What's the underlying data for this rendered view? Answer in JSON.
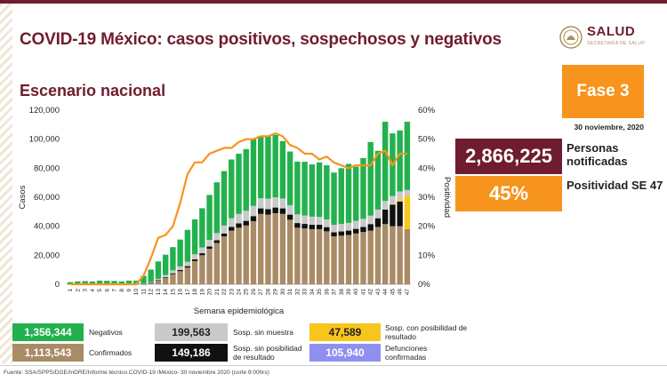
{
  "header": {
    "title": "COVID-19 México: casos positivos, sospechosos y negativos",
    "subtitle": "Escenario nacional",
    "logo_text": "SALUD",
    "logo_subtext": "SECRETARÍA DE SALUD"
  },
  "phase": {
    "label": "Fase 3",
    "date": "30 noviembre, 2020"
  },
  "stats": {
    "notified_value": "2,866,225",
    "notified_label": "Personas notificadas",
    "positivity_value": "45%",
    "positivity_label": "Positividad SE 47"
  },
  "legend": {
    "negatives": {
      "value": "1,356,344",
      "label": "Negativos",
      "color": "#23b14d"
    },
    "confirmed": {
      "value": "1,113,543",
      "label": "Confirmados",
      "color": "#a98b66"
    },
    "no_sample": {
      "value": "199,563",
      "label": "Sosp. sin muestra",
      "color": "#c9c9c9"
    },
    "no_result_possible": {
      "value": "149,186",
      "label": "Sosp. sin posibilidad de resultado",
      "color": "#111111"
    },
    "with_result_possible": {
      "value": "47,589",
      "label": "Sosp. con posibilidad de resultado",
      "color": "#f6c61c"
    },
    "deaths": {
      "value": "105,940",
      "label": "Defunciones confirmadas",
      "color": "#8f8ff0"
    }
  },
  "footer": "Fuente: SSA/SPPS/DGE/InDRE/Informe técnico.COVID-19 /México- 30 noviembre 2020 (corte 9:00hrs)",
  "chart_data": {
    "type": "bar",
    "stacked": true,
    "xlabel": "Semana epidemiológica",
    "ylabel": "Casos",
    "y2label": "Positividad",
    "ylim": [
      0,
      120000
    ],
    "y2lim": [
      0,
      60
    ],
    "yticks": [
      "0",
      "20,000",
      "40,000",
      "60,000",
      "80,000",
      "100,000",
      "120,000"
    ],
    "y2ticks": [
      "0%",
      "10%",
      "20%",
      "30%",
      "40%",
      "50%",
      "60%"
    ],
    "grid": false,
    "categories": [
      "1",
      "2",
      "3",
      "4",
      "5",
      "6",
      "7",
      "8",
      "9",
      "10",
      "11",
      "12",
      "13",
      "14",
      "15",
      "16",
      "17",
      "18",
      "19",
      "20",
      "21",
      "22",
      "23",
      "24",
      "25",
      "26",
      "27",
      "28",
      "29",
      "30",
      "31",
      "32",
      "33",
      "34",
      "35",
      "36",
      "37",
      "38",
      "39",
      "40",
      "41",
      "42",
      "43",
      "44",
      "45",
      "46",
      "47"
    ],
    "series": [
      {
        "name": "Confirmados",
        "color": "#a98b66",
        "values": [
          0,
          0,
          0,
          0,
          0,
          0,
          0,
          0,
          0,
          10,
          120,
          900,
          2500,
          4500,
          7000,
          9000,
          11500,
          16000,
          20000,
          24500,
          28500,
          33000,
          37000,
          39000,
          40500,
          43500,
          48500,
          48000,
          49000,
          48500,
          44500,
          39000,
          38500,
          38000,
          38000,
          36500,
          33000,
          33500,
          34000,
          35000,
          36000,
          37000,
          39500,
          41500,
          40000,
          40000,
          38000
        ]
      },
      {
        "name": "Sosp. sin posibilidad de resultado",
        "color": "#111111",
        "values": [
          0,
          0,
          0,
          0,
          0,
          0,
          0,
          0,
          0,
          0,
          20,
          100,
          250,
          400,
          600,
          800,
          1000,
          1200,
          1400,
          1600,
          1800,
          2000,
          2500,
          3000,
          3200,
          3500,
          3800,
          3800,
          3900,
          3800,
          3500,
          3200,
          3100,
          3000,
          3000,
          2900,
          2800,
          2900,
          3000,
          3200,
          3500,
          4500,
          6000,
          10000,
          15000,
          17000,
          0
        ]
      },
      {
        "name": "Sosp. con posibilidad de resultado",
        "color": "#f6c61c",
        "values": [
          0,
          0,
          0,
          0,
          0,
          0,
          0,
          0,
          0,
          0,
          0,
          0,
          0,
          0,
          0,
          0,
          0,
          0,
          0,
          0,
          0,
          0,
          0,
          0,
          0,
          0,
          0,
          0,
          0,
          0,
          0,
          0,
          0,
          0,
          0,
          0,
          0,
          0,
          0,
          0,
          0,
          0,
          0,
          0,
          100,
          1500,
          23000
        ]
      },
      {
        "name": "Sosp. sin muestra",
        "color": "#c9c9c9",
        "values": [
          0,
          0,
          0,
          0,
          0,
          0,
          0,
          0,
          0,
          20,
          150,
          500,
          1000,
          1500,
          2000,
          2500,
          3000,
          3500,
          4000,
          4500,
          5000,
          5500,
          6000,
          6500,
          7000,
          7000,
          7000,
          7200,
          7000,
          6800,
          6500,
          6000,
          5800,
          5600,
          5500,
          5300,
          5200,
          5200,
          5300,
          5500,
          5600,
          5800,
          6000,
          6000,
          5800,
          5500,
          4000
        ]
      },
      {
        "name": "Negativos",
        "color": "#23b14d",
        "values": [
          1500,
          2000,
          2200,
          1900,
          2500,
          2400,
          2300,
          2000,
          2500,
          2500,
          5500,
          8600,
          12000,
          14000,
          16000,
          18500,
          22000,
          24000,
          27000,
          31000,
          35000,
          37500,
          40500,
          41500,
          42500,
          46000,
          43000,
          43000,
          43000,
          39500,
          37000,
          36300,
          37000,
          36000,
          37500,
          37300,
          36000,
          38400,
          40700,
          37300,
          41900,
          50700,
          40500,
          54500,
          43100,
          42000,
          47000
        ]
      }
    ],
    "line": {
      "name": "Positividad",
      "color": "#f7941d",
      "axis": "y2",
      "values": [
        0,
        0,
        0,
        0,
        0,
        0,
        0,
        0,
        0,
        0,
        3,
        9,
        16,
        17,
        20,
        28,
        38,
        42,
        42,
        45,
        46,
        47,
        47,
        49,
        50,
        50,
        51,
        51,
        52,
        51,
        48,
        47,
        45,
        45,
        43,
        44,
        42,
        41,
        40,
        41,
        41,
        41,
        45,
        46,
        41,
        45,
        45
      ]
    }
  }
}
